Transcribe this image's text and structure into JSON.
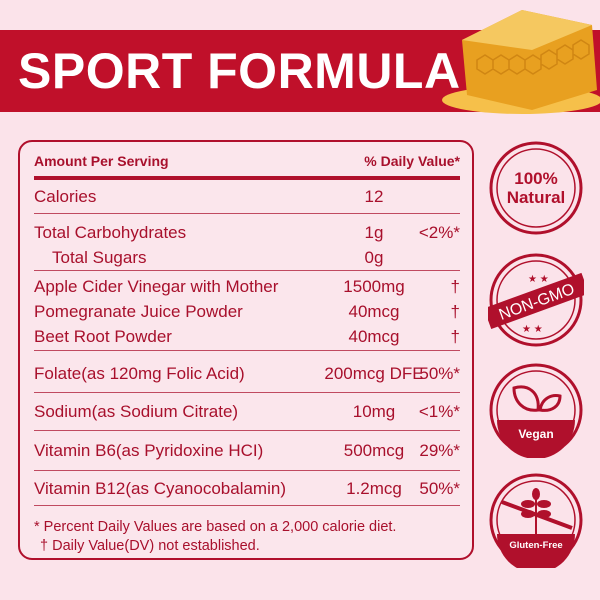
{
  "title": "SPORT FORMULA",
  "table": {
    "header_left": "Amount Per Serving",
    "header_right": "% Daily Value*",
    "rows": [
      {
        "name": "Calories",
        "amount": "12",
        "dv": ""
      },
      {
        "name": "Total Carbohydrates",
        "amount": "1g",
        "dv": "<2%*"
      },
      {
        "name": "Total Sugars",
        "amount": "0g",
        "dv": ""
      },
      {
        "name": "Apple Cider Vinegar with Mother",
        "amount": "1500mg",
        "dv": "†"
      },
      {
        "name": "Pomegranate Juice Powder",
        "amount": "40mcg",
        "dv": "†"
      },
      {
        "name": "Beet Root Powder",
        "amount": "40mcg",
        "dv": "†"
      },
      {
        "name": "Folate(as 120mg Folic Acid)",
        "amount": "200mcg DFE",
        "dv": "50%*"
      },
      {
        "name": "Sodium(as Sodium Citrate)",
        "amount": "10mg",
        "dv": "<1%*"
      },
      {
        "name": "Vitamin B6(as Pyridoxine HCI)",
        "amount": "500mcg",
        "dv": "29%*"
      },
      {
        "name": "Vitamin B12(as Cyanocobalamin)",
        "amount": "1.2mcg",
        "dv": "50%*"
      }
    ],
    "footnote1": "* Percent Daily Values are based on a 2,000 calorie diet.",
    "footnote2": "† Daily Value(DV) not established."
  },
  "badges": {
    "natural_1": "100%",
    "natural_2": "Natural",
    "nongmo": "NON-GMO",
    "vegan": "Vegan",
    "gluten": "Gluten-Free"
  },
  "colors": {
    "brand": "#c0102a",
    "background": "#fbe3ea"
  }
}
